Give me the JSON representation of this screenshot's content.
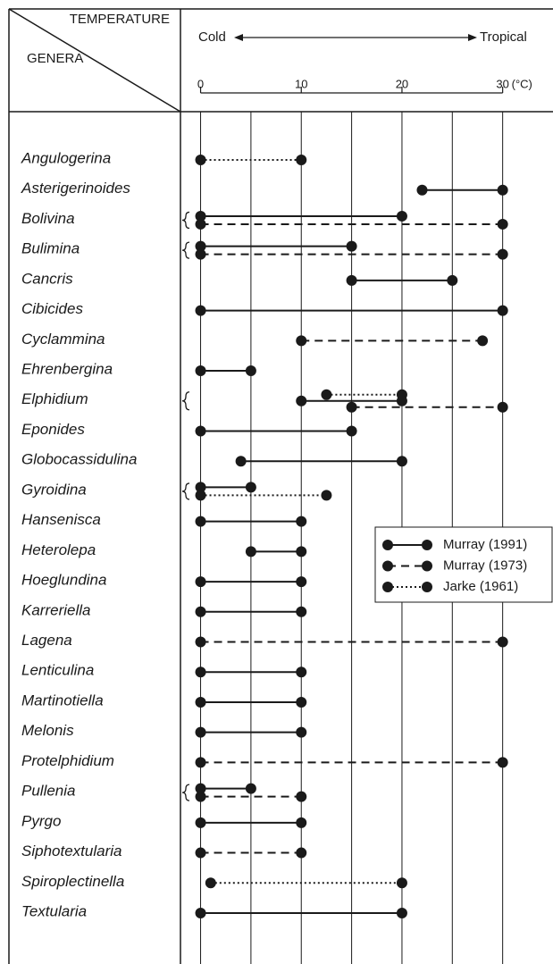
{
  "chart_data": {
    "type": "range",
    "header_left_top": "TEMPERATURE",
    "header_left_bottom": "GENERA",
    "arrow_left": "Cold",
    "arrow_right": "Tropical",
    "unit": "(°C)",
    "xlim": [
      -2,
      35
    ],
    "xticks": [
      0,
      10,
      20,
      30
    ],
    "xgrid": [
      0,
      5,
      10,
      15,
      20,
      25,
      30
    ],
    "categories": [
      "Angulogerina",
      "Asterigerinoides",
      "Bolivina",
      "Bulimina",
      "Cancris",
      "Cibicides",
      "Cyclammina",
      "Ehrenbergina",
      "Elphidium",
      "Eponides",
      "Globocassidulina",
      "Gyroidina",
      "Hansenisca",
      "Heterolepa",
      "Hoeglundina",
      "Karreriella",
      "Lagena",
      "Lenticulina",
      "Martinotiella",
      "Melonis",
      "Protelphidium",
      "Pullenia",
      "Pyrgo",
      "Siphotextularia",
      "Spiroplectinella",
      "Textularia"
    ],
    "series": [
      {
        "name": "Jarke (1961)",
        "color": "#1a1a1a",
        "style": "dotted",
        "values": [
          [
            0,
            10
          ],
          null,
          null,
          null,
          null,
          null,
          null,
          null,
          [
            12.5,
            20
          ],
          null,
          null,
          [
            0,
            12.5
          ],
          null,
          null,
          null,
          null,
          null,
          null,
          null,
          null,
          null,
          null,
          null,
          null,
          [
            1,
            20
          ],
          null
        ]
      },
      {
        "name": "Murray (1991)",
        "color": "#1a1a1a",
        "style": "solid",
        "values": [
          null,
          [
            22,
            30
          ],
          [
            0,
            20
          ],
          [
            0,
            15
          ],
          [
            15,
            25
          ],
          [
            0,
            30
          ],
          null,
          [
            0,
            5
          ],
          [
            10,
            20
          ],
          [
            0,
            15
          ],
          [
            4,
            20
          ],
          [
            0,
            5
          ],
          [
            0,
            10
          ],
          [
            5,
            10
          ],
          [
            0,
            10
          ],
          [
            0,
            10
          ],
          null,
          [
            0,
            10
          ],
          [
            0,
            10
          ],
          [
            0,
            10
          ],
          null,
          [
            0,
            5
          ],
          [
            0,
            10
          ],
          null,
          null,
          [
            0,
            20
          ]
        ]
      },
      {
        "name": "Murray (1973)",
        "color": "#1a1a1a",
        "style": "dashed",
        "values": [
          null,
          null,
          [
            0,
            30
          ],
          [
            0,
            30
          ],
          null,
          null,
          [
            10,
            28
          ],
          null,
          [
            15,
            30
          ],
          null,
          null,
          null,
          null,
          null,
          null,
          null,
          [
            0,
            30
          ],
          null,
          null,
          null,
          [
            0,
            30
          ],
          [
            0,
            10
          ],
          null,
          [
            0,
            10
          ],
          null,
          null
        ]
      }
    ],
    "legend_order": [
      1,
      2,
      0
    ]
  }
}
